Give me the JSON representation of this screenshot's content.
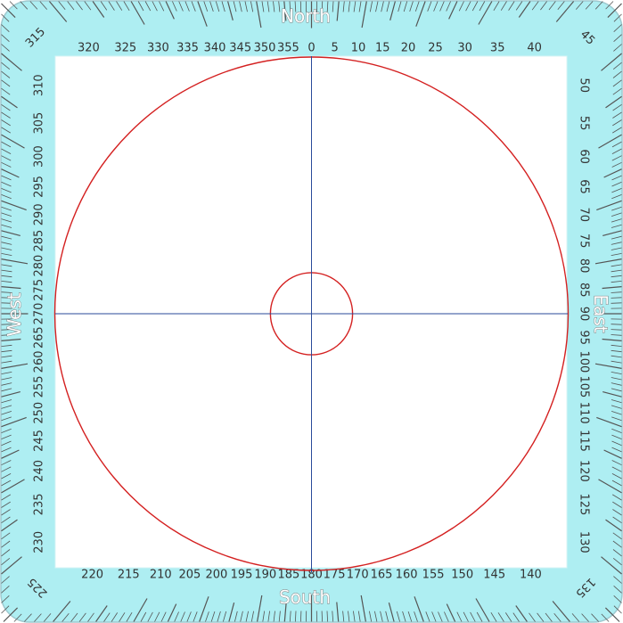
{
  "cardinals": {
    "north": "North",
    "south": "South",
    "east": "East",
    "west": "West"
  },
  "degree_labels": [
    "0",
    "5",
    "10",
    "15",
    "20",
    "25",
    "30",
    "35",
    "40",
    "45",
    "50",
    "55",
    "60",
    "65",
    "70",
    "75",
    "80",
    "85",
    "90",
    "95",
    "100",
    "105",
    "110",
    "115",
    "120",
    "125",
    "130",
    "135",
    "140",
    "145",
    "150",
    "155",
    "160",
    "165",
    "170",
    "175",
    "180",
    "185",
    "190",
    "195",
    "200",
    "205",
    "210",
    "215",
    "220",
    "225",
    "230",
    "235",
    "240",
    "245",
    "250",
    "255",
    "260",
    "265",
    "270",
    "275",
    "280",
    "285",
    "290",
    "295",
    "300",
    "305",
    "310",
    "315",
    "320",
    "325",
    "330",
    "335",
    "340",
    "345",
    "350",
    "355"
  ],
  "tick_step_degrees": 1,
  "label_step_degrees": 5,
  "inner_circle_fraction_of_outer": 0.16,
  "colors": {
    "frame_fill": "#aeeef2",
    "frame_border": "#9ec9cf",
    "tick": "#555555",
    "circle": "#d42020",
    "crosshair": "#2a4a9a",
    "label": "#333333"
  }
}
